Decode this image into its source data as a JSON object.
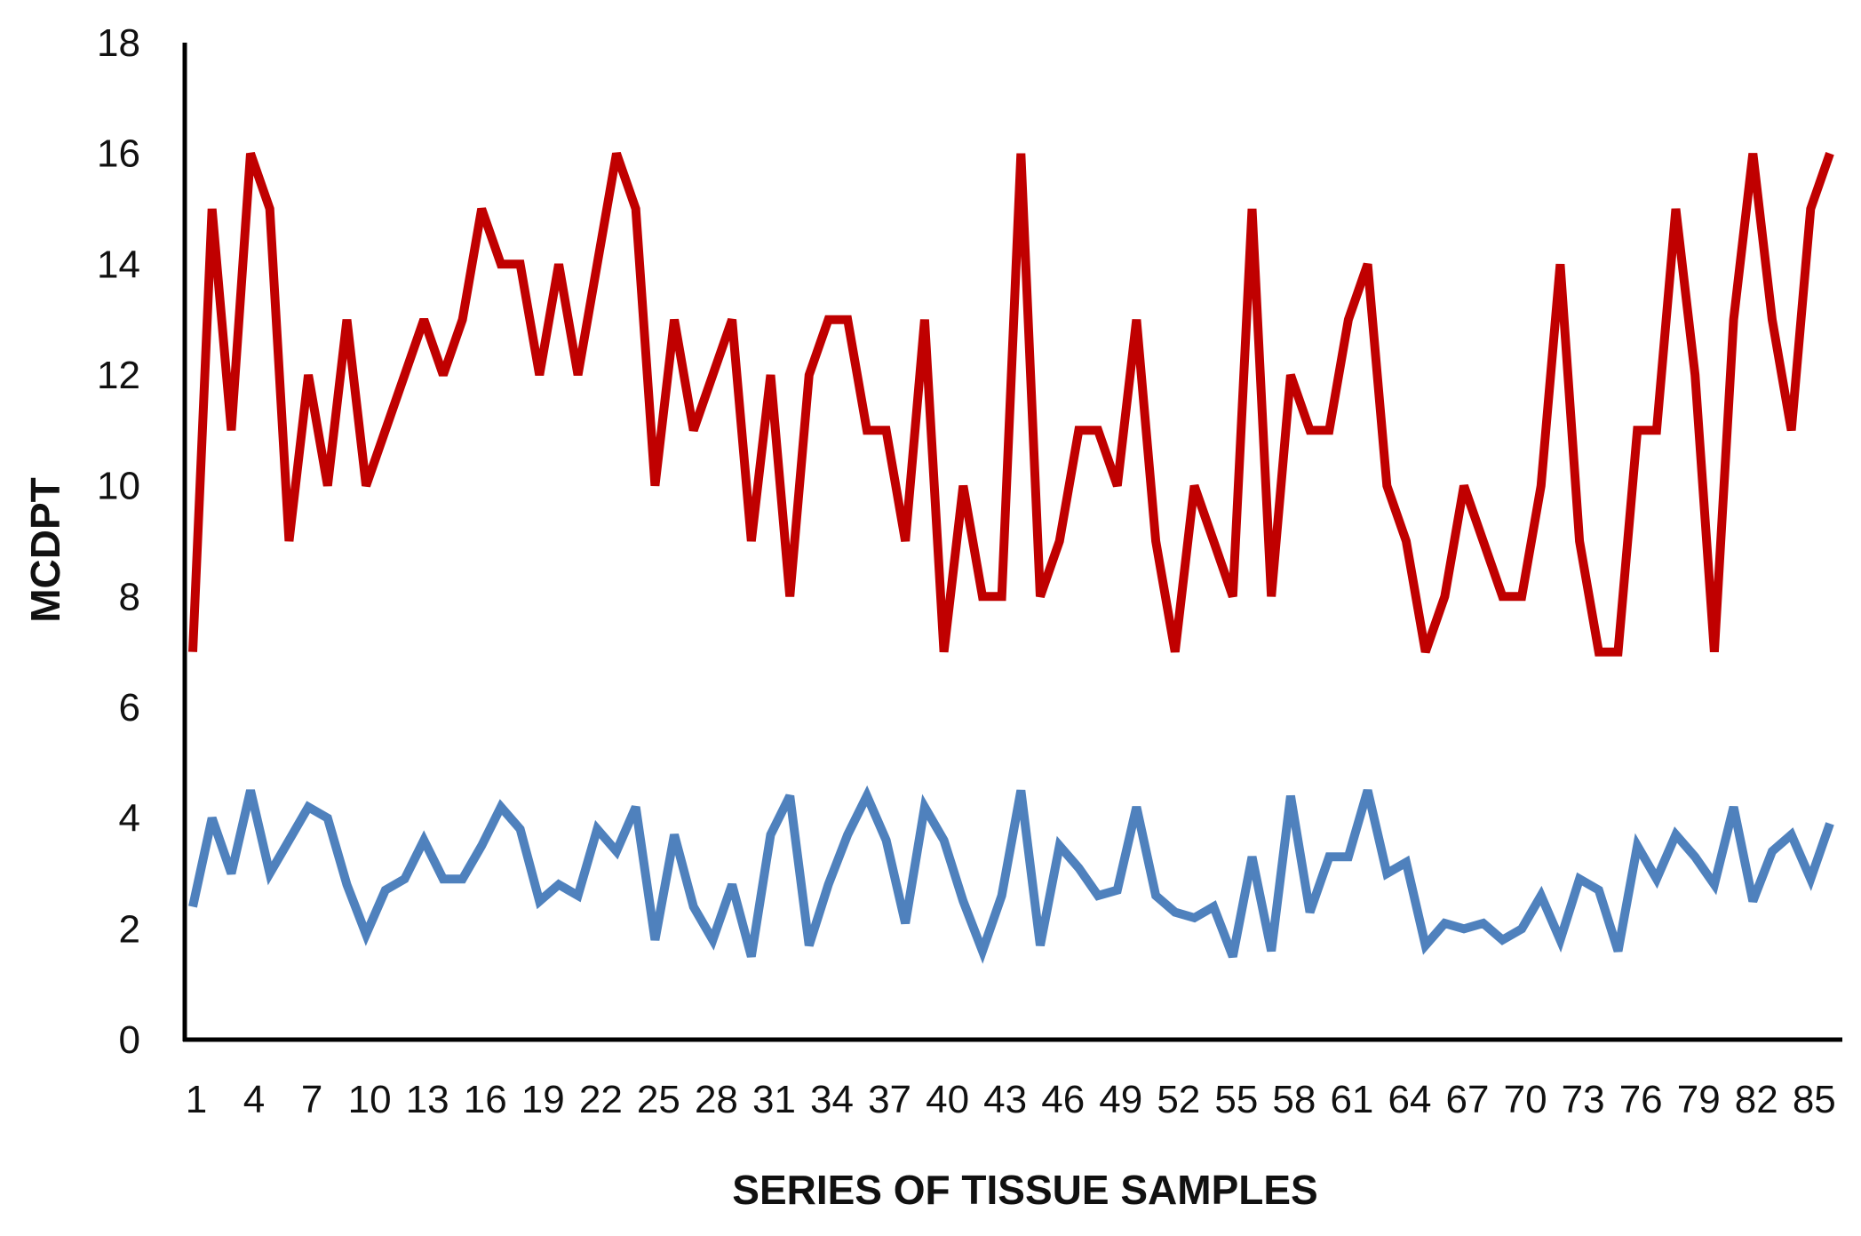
{
  "chart_data": {
    "type": "line",
    "title": "",
    "xlabel": "SERIES OF TISSUE SAMPLES",
    "ylabel": "MCDPT",
    "ylim": [
      0,
      18
    ],
    "yticks": [
      0,
      2,
      4,
      6,
      8,
      10,
      12,
      14,
      16,
      18
    ],
    "x": [
      1,
      2,
      3,
      4,
      5,
      6,
      7,
      8,
      9,
      10,
      11,
      12,
      13,
      14,
      15,
      16,
      17,
      18,
      19,
      20,
      21,
      22,
      23,
      24,
      25,
      26,
      27,
      28,
      29,
      30,
      31,
      32,
      33,
      34,
      35,
      36,
      37,
      38,
      39,
      40,
      41,
      42,
      43,
      44,
      45,
      46,
      47,
      48,
      49,
      50,
      51,
      52,
      53,
      54,
      55,
      56,
      57,
      58,
      59,
      60,
      61,
      62,
      63,
      64,
      65,
      66,
      67,
      68,
      69,
      70,
      71,
      72,
      73,
      74,
      75,
      76,
      77,
      78,
      79,
      80,
      81,
      82,
      83,
      84,
      85,
      86
    ],
    "xticks": [
      1,
      4,
      7,
      10,
      13,
      16,
      19,
      22,
      25,
      28,
      31,
      34,
      37,
      40,
      43,
      46,
      49,
      52,
      55,
      58,
      61,
      64,
      67,
      70,
      73,
      76,
      79,
      82,
      85
    ],
    "grid": false,
    "legend": "none",
    "series": [
      {
        "color": "#c00000",
        "values": [
          7,
          15,
          11,
          16,
          15,
          9,
          12,
          10,
          13,
          10,
          11,
          12,
          13,
          12,
          13,
          15,
          14,
          14,
          12,
          14,
          12,
          14,
          16,
          15,
          10,
          13,
          11,
          12,
          13,
          9,
          12,
          8,
          12,
          13,
          13,
          11,
          11,
          9,
          13,
          7,
          10,
          8,
          8,
          16,
          8,
          9,
          11,
          11,
          10,
          13,
          9,
          7,
          10,
          9,
          8,
          15,
          8,
          12,
          11,
          11,
          13,
          14,
          10,
          9,
          7,
          8,
          10,
          9,
          8,
          8,
          10,
          14,
          9,
          7,
          7,
          11,
          11,
          15,
          12,
          7,
          13,
          16,
          13,
          11,
          15,
          16
        ]
      },
      {
        "color": "#4f81bd",
        "values": [
          2.4,
          4.0,
          3.0,
          4.5,
          3.0,
          3.6,
          4.2,
          4.0,
          2.8,
          1.9,
          2.7,
          2.9,
          3.6,
          2.9,
          2.9,
          3.5,
          4.2,
          3.8,
          2.5,
          2.8,
          2.6,
          3.8,
          3.4,
          4.2,
          1.8,
          3.7,
          2.4,
          1.8,
          2.8,
          1.5,
          3.7,
          4.4,
          1.7,
          2.8,
          3.7,
          4.4,
          3.6,
          2.1,
          4.2,
          3.6,
          2.5,
          1.6,
          2.6,
          4.5,
          1.7,
          3.5,
          3.1,
          2.6,
          2.7,
          4.2,
          2.6,
          2.3,
          2.2,
          2.4,
          1.5,
          3.3,
          1.6,
          4.4,
          2.3,
          3.3,
          3.3,
          4.5,
          3.0,
          3.2,
          1.7,
          2.1,
          2.0,
          2.1,
          1.8,
          2.0,
          2.6,
          1.8,
          2.9,
          2.7,
          1.6,
          3.5,
          2.9,
          3.7,
          3.3,
          2.8,
          4.2,
          2.5,
          3.4,
          3.7,
          2.9,
          3.9
        ]
      }
    ]
  }
}
